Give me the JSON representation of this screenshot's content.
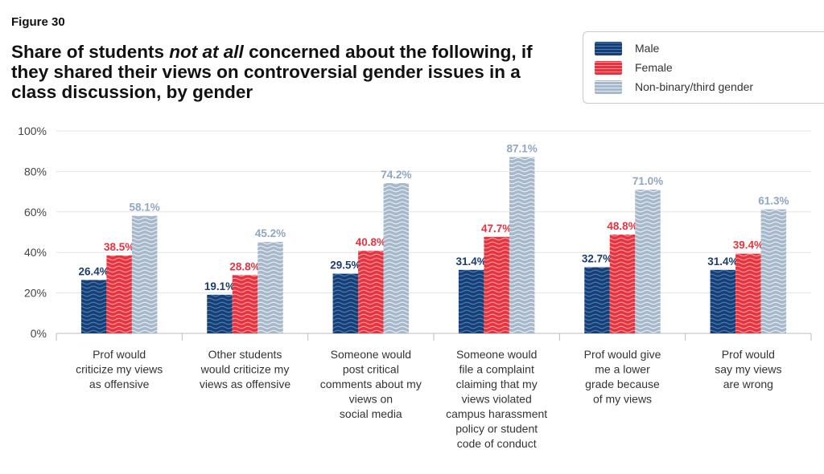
{
  "figure_label": "Figure 30",
  "title_parts": [
    "Share of students ",
    "not at all",
    " concerned about the following, if they shared their views on controversial gender issues in a class discussion, by gender"
  ],
  "colors": {
    "male": "#1c3d6e",
    "male_wave": "#3a82c8",
    "female": "#e8323d",
    "female_wave": "#f59aa0",
    "nonbinary": "#a7b8cb",
    "nonbinary_wave": "#e6ecf3",
    "male_label": "#1c3d6e",
    "female_label": "#e8323d",
    "nonbinary_label": "#8fa7c0",
    "grid": "#e3e3e3",
    "axis_text": "#444444"
  },
  "chart_data": {
    "type": "bar",
    "categories": [
      [
        "Prof would",
        "criticize my views",
        "as offensive"
      ],
      [
        "Other students",
        "would criticize my",
        "views as offensive"
      ],
      [
        "Someone would",
        "post critical",
        "comments about my",
        "views on",
        "social media"
      ],
      [
        "Someone would",
        "file a complaint",
        "claiming that my",
        "views violated",
        "campus harassment",
        "policy or student",
        "code of conduct"
      ],
      [
        "Prof would give",
        "me a lower",
        "grade because",
        "of my views"
      ],
      [
        "Prof would",
        "say my views",
        "are wrong"
      ]
    ],
    "series": [
      {
        "name": "Male",
        "values": [
          26.4,
          19.1,
          29.5,
          31.4,
          32.7,
          31.4
        ],
        "labels": [
          "26.4%",
          "19.1%",
          "29.5%",
          "31.4%",
          "32.7%",
          "31.4%"
        ]
      },
      {
        "name": "Female",
        "values": [
          38.5,
          28.8,
          40.8,
          47.7,
          48.8,
          39.4
        ],
        "labels": [
          "38.5%",
          "28.8%",
          "40.8%",
          "47.7%",
          "48.8%",
          "39.4%"
        ]
      },
      {
        "name": "Non-binary/third gender",
        "values": [
          58.1,
          45.2,
          74.2,
          87.1,
          71.0,
          61.3
        ],
        "labels": [
          "58.1%",
          "45.2%",
          "74.2%",
          "87.1%",
          "71.0%",
          "61.3%"
        ]
      }
    ],
    "yticks": [
      "0%",
      "20%",
      "40%",
      "60%",
      "80%",
      "100%"
    ],
    "ylim": [
      0,
      100
    ],
    "grid": true,
    "legend": "top-right"
  }
}
